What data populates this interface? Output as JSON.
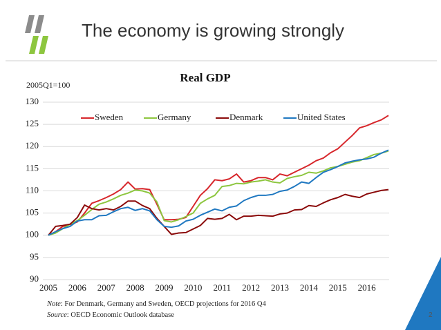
{
  "slide_title": "The economy is growing strongly",
  "chart_data": {
    "type": "line",
    "title": "Real GDP",
    "y_label": "2005Q1=100",
    "categories": [
      "2005",
      null,
      null,
      null,
      "2006",
      null,
      null,
      null,
      "2007",
      null,
      null,
      null,
      "2008",
      null,
      null,
      null,
      "2009",
      null,
      null,
      null,
      "2010",
      null,
      null,
      null,
      "2011",
      null,
      null,
      null,
      "2012",
      null,
      null,
      null,
      "2013",
      null,
      null,
      null,
      "2014",
      null,
      null,
      null,
      "2015",
      null,
      null,
      null,
      "2016",
      null,
      null,
      null
    ],
    "series": [
      {
        "name": "Sweden",
        "color": "#d7262b",
        "values": [
          100,
          100.8,
          102,
          102.4,
          103,
          105,
          107.2,
          107.8,
          108.5,
          109.3,
          110.3,
          112,
          110.4,
          110.5,
          110.3,
          107,
          103.5,
          103.5,
          103.6,
          104,
          106.5,
          109,
          110.5,
          112.5,
          112.3,
          112.7,
          113.8,
          112,
          112.3,
          113,
          113,
          112.5,
          113.8,
          113.4,
          114.2,
          115,
          115.8,
          116.8,
          117.4,
          118.6,
          119.5,
          121,
          122.5,
          124.2,
          124.7,
          125.4,
          126,
          127
        ]
      },
      {
        "name": "Germany",
        "color": "#8dc63f",
        "values": [
          100,
          100.5,
          101.5,
          102.5,
          103.3,
          104.5,
          105.8,
          107,
          107.5,
          108.2,
          109,
          109.5,
          110.2,
          110,
          109.5,
          107.5,
          103.3,
          103,
          103.5,
          104.2,
          105,
          107.2,
          108.2,
          109,
          111,
          111.2,
          111.7,
          111.6,
          112,
          112.2,
          112.5,
          112,
          111.8,
          112.8,
          113.2,
          113.5,
          114.2,
          114,
          114.5,
          115.2,
          115.5,
          116,
          116.5,
          116.8,
          117.5,
          118.2,
          118.5,
          119
        ]
      },
      {
        "name": "Denmark",
        "color": "#8b0a0a",
        "values": [
          100,
          102,
          102.2,
          102.5,
          104,
          106.8,
          106,
          105.7,
          106,
          105.7,
          106.5,
          107.7,
          107.7,
          106.7,
          106,
          103.8,
          102,
          100.2,
          100.5,
          100.6,
          101.4,
          102.2,
          103.8,
          103.6,
          103.8,
          104.7,
          103.5,
          104.3,
          104.3,
          104.5,
          104.4,
          104.3,
          104.8,
          105,
          105.7,
          105.8,
          106.7,
          106.5,
          107.3,
          108,
          108.5,
          109.2,
          108.8,
          108.5,
          109.3,
          109.7,
          110.1,
          110.3
        ]
      },
      {
        "name": "United States",
        "color": "#1f78c1",
        "values": [
          100,
          100.8,
          101.5,
          102,
          103.2,
          103.5,
          103.5,
          104.4,
          104.5,
          105.3,
          106,
          106.3,
          105.6,
          106,
          105.5,
          103.5,
          102,
          101.8,
          102.1,
          103.2,
          103.6,
          104.5,
          105.2,
          105.9,
          105.5,
          106.3,
          106.6,
          107.8,
          108.5,
          109,
          109,
          109.2,
          109.9,
          110.2,
          111,
          112,
          111.7,
          113,
          114.2,
          114.8,
          115.5,
          116.3,
          116.7,
          117,
          117.2,
          117.6,
          118.5,
          119.2
        ]
      }
    ],
    "ylim": [
      90,
      130
    ],
    "yticks": [
      90,
      95,
      100,
      105,
      110,
      115,
      120,
      125,
      130
    ],
    "grid": true,
    "legend": "top"
  },
  "note_label": "Note",
  "note": ": For Denmark, Germany and Sweden, OECD projections for 2016 Q4",
  "source_label": "Source",
  "source": ": OECD Economic Outlook database",
  "page_number": "2"
}
